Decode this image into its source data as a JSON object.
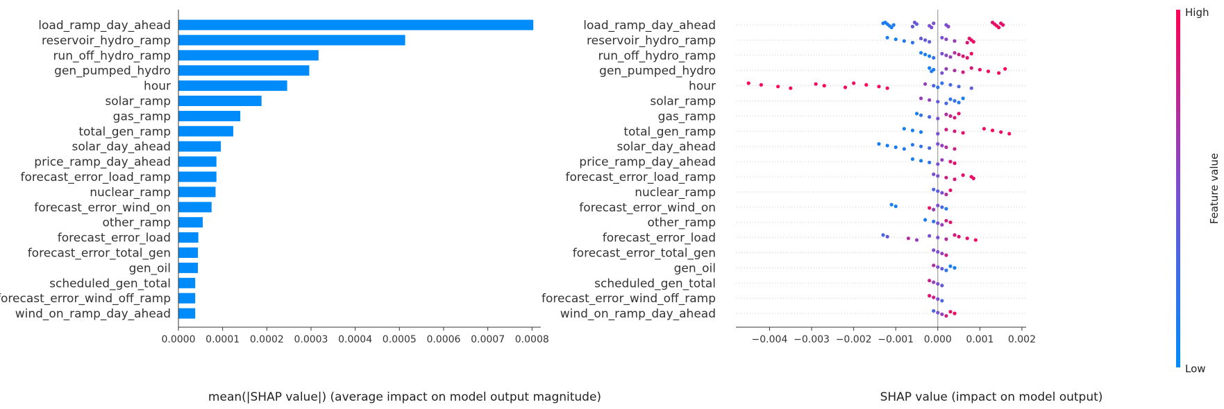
{
  "chart_data": [
    {
      "type": "bar",
      "orientation": "horizontal",
      "xlabel": "mean(|SHAP value|) (average impact on model output magnitude)",
      "xlim": [
        0,
        0.00082
      ],
      "xticks": [
        "0.0000",
        "0.0001",
        "0.0002",
        "0.0003",
        "0.0004",
        "0.0005",
        "0.0006",
        "0.0007",
        "0.0008"
      ],
      "xtick_values": [
        0,
        0.0001,
        0.0002,
        0.0003,
        0.0004,
        0.0005,
        0.0006,
        0.0007,
        0.0008
      ],
      "bar_color": "#008bfb",
      "categories": [
        "load_ramp_day_ahead",
        "reservoir_hydro_ramp",
        "run_off_hydro_ramp",
        "gen_pumped_hydro",
        "hour",
        "solar_ramp",
        "gas_ramp",
        "total_gen_ramp",
        "solar_day_ahead",
        "price_ramp_day_ahead",
        "forecast_error_load_ramp",
        "nuclear_ramp",
        "forecast_error_wind_on",
        "other_ramp",
        "forecast_error_load",
        "forecast_error_total_gen",
        "gen_oil",
        "scheduled_gen_total",
        "forecast_error_wind_off_ramp",
        "wind_on_ramp_day_ahead"
      ],
      "values": [
        0.000803,
        0.000513,
        0.000317,
        0.000296,
        0.000246,
        0.000188,
        0.00014,
        0.000124,
        9.6e-05,
        8.6e-05,
        8.6e-05,
        8.4e-05,
        7.5e-05,
        5.5e-05,
        4.5e-05,
        4.4e-05,
        4.4e-05,
        3.8e-05,
        3.8e-05,
        3.8e-05
      ]
    },
    {
      "type": "scatter",
      "subtype": "beeswarm",
      "xlabel": "SHAP value (impact on model output)",
      "xlim": [
        -0.0048,
        0.0021
      ],
      "xticks": [
        "−0.004",
        "−0.003",
        "−0.002",
        "−0.001",
        "0.000",
        "0.001",
        "0.002"
      ],
      "xtick_values": [
        -0.004,
        -0.003,
        -0.002,
        -0.001,
        0,
        0.001,
        0.002
      ],
      "colorbar": {
        "label": "Feature value",
        "high": "High",
        "low": "Low",
        "low_color": "#008bfb",
        "mid_color": "#7a4fd1",
        "high_color": "#ff0052"
      },
      "features": [
        {
          "name": "load_ramp_day_ahead",
          "points": [
            [
              -0.00125,
              0.1
            ],
            [
              -0.0012,
              0.1
            ],
            [
              -0.00115,
              0.15
            ],
            [
              -0.0011,
              0.1
            ],
            [
              -0.0013,
              0.15
            ],
            [
              -0.00105,
              0.15
            ],
            [
              -0.0006,
              0.4
            ],
            [
              -0.00055,
              0.45
            ],
            [
              -0.0005,
              0.4
            ],
            [
              -0.0002,
              0.5
            ],
            [
              -0.00015,
              0.5
            ],
            [
              -0.0001,
              0.5
            ],
            [
              0.0002,
              0.5
            ],
            [
              0.00025,
              0.55
            ],
            [
              0.0013,
              0.9
            ],
            [
              0.00135,
              0.9
            ],
            [
              0.0014,
              0.95
            ],
            [
              0.00145,
              0.95
            ],
            [
              0.0015,
              0.9
            ],
            [
              0.00155,
              0.9
            ]
          ]
        },
        {
          "name": "reservoir_hydro_ramp",
          "points": [
            [
              -0.0012,
              0.1
            ],
            [
              -0.001,
              0.1
            ],
            [
              -0.0008,
              0.15
            ],
            [
              -0.0006,
              0.2
            ],
            [
              -0.0004,
              0.4
            ],
            [
              -0.0003,
              0.4
            ],
            [
              -0.0002,
              0.4
            ],
            [
              0.0001,
              0.5
            ],
            [
              0.0002,
              0.55
            ],
            [
              0.0004,
              0.6
            ],
            [
              0.0007,
              0.85
            ],
            [
              0.00075,
              0.9
            ],
            [
              0.0008,
              0.9
            ],
            [
              0.00085,
              0.95
            ]
          ]
        },
        {
          "name": "run_off_hydro_ramp",
          "points": [
            [
              -0.0004,
              0.1
            ],
            [
              -0.0003,
              0.1
            ],
            [
              -0.0002,
              0.1
            ],
            [
              -0.0001,
              0.2
            ],
            [
              0.0001,
              0.5
            ],
            [
              0.0002,
              0.55
            ],
            [
              0.0003,
              0.6
            ],
            [
              0.0004,
              0.7
            ],
            [
              0.0005,
              0.8
            ],
            [
              0.0006,
              0.85
            ],
            [
              0.0007,
              0.9
            ],
            [
              0.0008,
              0.95
            ]
          ]
        },
        {
          "name": "gen_pumped_hydro",
          "points": [
            [
              -0.0002,
              0.1
            ],
            [
              -0.0001,
              0.1
            ],
            [
              -0.00015,
              0.15
            ],
            [
              0.0001,
              0.5
            ],
            [
              0.0002,
              0.6
            ],
            [
              0.0004,
              0.7
            ],
            [
              0.0006,
              0.8
            ],
            [
              0.0008,
              0.85
            ],
            [
              0.001,
              0.9
            ],
            [
              0.0012,
              0.95
            ],
            [
              0.00145,
              0.95
            ],
            [
              0.0016,
              1.0
            ]
          ]
        },
        {
          "name": "hour",
          "points": [
            [
              -0.0045,
              1.0
            ],
            [
              -0.0042,
              0.95
            ],
            [
              -0.0038,
              1.0
            ],
            [
              -0.0035,
              0.95
            ],
            [
              -0.0029,
              0.95
            ],
            [
              -0.0027,
              1.0
            ],
            [
              -0.0022,
              0.95
            ],
            [
              -0.002,
              0.95
            ],
            [
              -0.0017,
              1.0
            ],
            [
              -0.0014,
              0.95
            ],
            [
              -0.0012,
              0.95
            ],
            [
              -0.0003,
              0.6
            ],
            [
              -0.0001,
              0.3
            ],
            [
              0.0,
              0.2
            ],
            [
              0.0001,
              0.2
            ],
            [
              0.0003,
              0.3
            ],
            [
              0.0005,
              0.3
            ],
            [
              0.0008,
              0.4
            ]
          ]
        },
        {
          "name": "solar_ramp",
          "points": [
            [
              -0.0004,
              0.6
            ],
            [
              -0.0002,
              0.6
            ],
            [
              0.0,
              0.4
            ],
            [
              0.0002,
              0.3
            ],
            [
              0.0003,
              0.2
            ],
            [
              0.0004,
              0.2
            ],
            [
              0.0005,
              0.15
            ],
            [
              0.0006,
              0.1
            ]
          ]
        },
        {
          "name": "gas_ramp",
          "points": [
            [
              -0.0005,
              0.1
            ],
            [
              -0.0004,
              0.2
            ],
            [
              -0.0002,
              0.3
            ],
            [
              0.0,
              0.5
            ],
            [
              0.0002,
              0.7
            ],
            [
              0.0003,
              0.8
            ],
            [
              0.0004,
              0.85
            ],
            [
              0.0005,
              0.9
            ]
          ]
        },
        {
          "name": "total_gen_ramp",
          "points": [
            [
              -0.0008,
              0.1
            ],
            [
              -0.0006,
              0.1
            ],
            [
              -0.0004,
              0.1
            ],
            [
              0.0,
              0.5
            ],
            [
              0.0002,
              0.8
            ],
            [
              0.0004,
              0.85
            ],
            [
              0.0006,
              0.9
            ],
            [
              0.0011,
              0.95
            ],
            [
              0.0013,
              0.95
            ],
            [
              0.0015,
              0.9
            ],
            [
              0.0017,
              0.95
            ]
          ]
        },
        {
          "name": "solar_day_ahead",
          "points": [
            [
              -0.0014,
              0.1
            ],
            [
              -0.0012,
              0.1
            ],
            [
              -0.001,
              0.1
            ],
            [
              -0.0008,
              0.15
            ],
            [
              -0.0006,
              0.15
            ],
            [
              -0.0004,
              0.2
            ],
            [
              -0.0002,
              0.3
            ],
            [
              0.0,
              0.5
            ],
            [
              0.0001,
              0.6
            ],
            [
              0.0002,
              0.7
            ],
            [
              0.0004,
              0.8
            ]
          ]
        },
        {
          "name": "price_ramp_day_ahead",
          "points": [
            [
              -0.0006,
              0.1
            ],
            [
              -0.0004,
              0.1
            ],
            [
              -0.0002,
              0.2
            ],
            [
              0.0,
              0.5
            ],
            [
              0.0001,
              0.6
            ],
            [
              0.0003,
              0.85
            ],
            [
              0.0004,
              0.9
            ]
          ]
        },
        {
          "name": "forecast_error_load_ramp",
          "points": [
            [
              -0.0001,
              0.5
            ],
            [
              0.0,
              0.5
            ],
            [
              0.0002,
              0.8
            ],
            [
              0.0004,
              0.85
            ],
            [
              0.0006,
              0.9
            ],
            [
              0.0008,
              0.95
            ],
            [
              0.00085,
              0.9
            ]
          ]
        },
        {
          "name": "nuclear_ramp",
          "points": [
            [
              -0.0001,
              0.3
            ],
            [
              0.0,
              0.4
            ],
            [
              0.0001,
              0.5
            ],
            [
              0.0002,
              0.7
            ],
            [
              0.0003,
              0.9
            ]
          ]
        },
        {
          "name": "forecast_error_wind_on",
          "points": [
            [
              -0.0011,
              0.1
            ],
            [
              -0.001,
              0.1
            ],
            [
              -0.0002,
              0.9
            ],
            [
              -0.0001,
              0.6
            ],
            [
              0.0,
              0.5
            ],
            [
              0.0001,
              0.3
            ],
            [
              0.0002,
              0.15
            ]
          ]
        },
        {
          "name": "other_ramp",
          "points": [
            [
              -0.0003,
              0.1
            ],
            [
              -0.0001,
              0.2
            ],
            [
              0.0,
              0.5
            ],
            [
              0.0001,
              0.6
            ],
            [
              0.0002,
              0.8
            ],
            [
              0.0003,
              0.9
            ]
          ]
        },
        {
          "name": "forecast_error_load",
          "points": [
            [
              -0.0013,
              0.3
            ],
            [
              -0.0012,
              0.4
            ],
            [
              -0.0007,
              0.7
            ],
            [
              -0.0005,
              0.6
            ],
            [
              -0.0002,
              0.5
            ],
            [
              0.0,
              0.5
            ],
            [
              0.0002,
              0.7
            ],
            [
              0.0004,
              0.85
            ],
            [
              0.0005,
              0.9
            ],
            [
              0.0007,
              0.9
            ],
            [
              0.0009,
              0.95
            ]
          ]
        },
        {
          "name": "forecast_error_total_gen",
          "points": [
            [
              -0.0001,
              0.5
            ],
            [
              0.0,
              0.5
            ],
            [
              0.0001,
              0.6
            ],
            [
              0.0002,
              0.8
            ]
          ]
        },
        {
          "name": "gen_oil",
          "points": [
            [
              -0.0001,
              0.7
            ],
            [
              0.0,
              0.5
            ],
            [
              0.0001,
              0.4
            ],
            [
              0.0002,
              0.2
            ],
            [
              0.0003,
              0.1
            ],
            [
              0.0004,
              0.1
            ]
          ]
        },
        {
          "name": "scheduled_gen_total",
          "points": [
            [
              -0.0002,
              0.8
            ],
            [
              -0.0001,
              0.6
            ],
            [
              0.0,
              0.5
            ],
            [
              0.0001,
              0.4
            ]
          ]
        },
        {
          "name": "forecast_error_wind_off_ramp",
          "points": [
            [
              -0.0002,
              0.9
            ],
            [
              -0.0001,
              0.8
            ],
            [
              0.0,
              0.5
            ],
            [
              0.0001,
              0.3
            ]
          ]
        },
        {
          "name": "wind_on_ramp_day_ahead",
          "points": [
            [
              -0.0001,
              0.3
            ],
            [
              0.0,
              0.5
            ],
            [
              0.0001,
              0.6
            ],
            [
              0.0002,
              0.8
            ],
            [
              0.0003,
              0.9
            ],
            [
              0.0004,
              0.95
            ]
          ]
        }
      ]
    }
  ]
}
